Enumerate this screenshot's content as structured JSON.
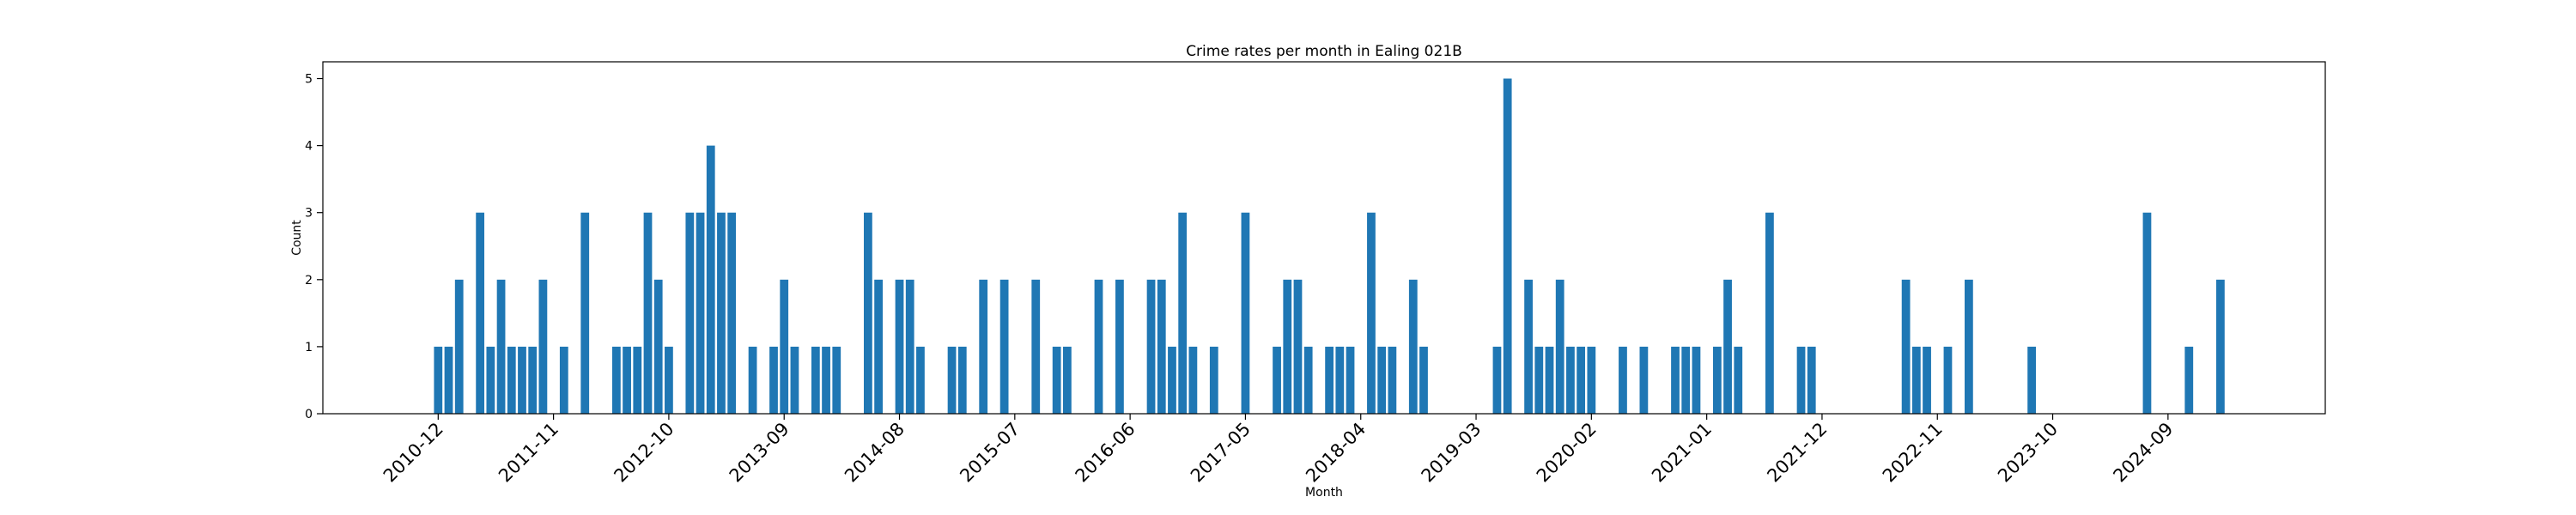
{
  "chart_data": {
    "type": "bar",
    "title": "Crime rates per month in Ealing 021B",
    "xlabel": "Month",
    "ylabel": "Count",
    "ylim": [
      0,
      5.25
    ],
    "yticks": [
      0,
      1,
      2,
      3,
      4,
      5
    ],
    "xticks": [
      "2010-12",
      "2011-11",
      "2012-10",
      "2013-09",
      "2014-08",
      "2015-07",
      "2016-06",
      "2017-05",
      "2018-04",
      "2019-03",
      "2020-02",
      "2021-01",
      "2021-12",
      "2022-11",
      "2023-10",
      "2024-09"
    ],
    "xlim": [
      "2010-01",
      "2025-12"
    ],
    "grid": false,
    "color": "#1f77b4",
    "x": [
      "2010-12",
      "2011-01",
      "2011-02",
      "2011-04",
      "2011-05",
      "2011-06",
      "2011-07",
      "2011-08",
      "2011-09",
      "2011-10",
      "2011-12",
      "2012-02",
      "2012-05",
      "2012-06",
      "2012-07",
      "2012-08",
      "2012-09",
      "2012-10",
      "2012-12",
      "2013-01",
      "2013-02",
      "2013-03",
      "2013-04",
      "2013-06",
      "2013-08",
      "2013-09",
      "2013-10",
      "2013-12",
      "2014-01",
      "2014-02",
      "2014-05",
      "2014-06",
      "2014-08",
      "2014-09",
      "2014-10",
      "2015-01",
      "2015-02",
      "2015-04",
      "2015-06",
      "2015-09",
      "2015-11",
      "2015-12",
      "2016-03",
      "2016-05",
      "2016-08",
      "2016-09",
      "2016-10",
      "2016-11",
      "2016-12",
      "2017-02",
      "2017-05",
      "2017-08",
      "2017-09",
      "2017-10",
      "2017-11",
      "2018-01",
      "2018-02",
      "2018-03",
      "2018-05",
      "2018-06",
      "2018-07",
      "2018-09",
      "2018-10",
      "2019-05",
      "2019-06",
      "2019-08",
      "2019-09",
      "2019-10",
      "2019-11",
      "2019-12",
      "2020-01",
      "2020-02",
      "2020-05",
      "2020-07",
      "2020-10",
      "2020-11",
      "2020-12",
      "2021-02",
      "2021-03",
      "2021-04",
      "2021-07",
      "2021-10",
      "2021-11",
      "2022-08",
      "2022-09",
      "2022-10",
      "2022-12",
      "2023-02",
      "2023-08",
      "2024-07",
      "2024-11",
      "2025-02"
    ],
    "values": [
      1,
      1,
      2,
      3,
      1,
      2,
      1,
      1,
      1,
      2,
      1,
      3,
      1,
      1,
      1,
      3,
      2,
      1,
      3,
      3,
      4,
      3,
      3,
      1,
      1,
      2,
      1,
      1,
      1,
      1,
      3,
      2,
      2,
      2,
      1,
      1,
      1,
      2,
      2,
      2,
      1,
      1,
      2,
      2,
      2,
      2,
      1,
      3,
      1,
      1,
      3,
      1,
      2,
      2,
      1,
      1,
      1,
      1,
      3,
      1,
      1,
      2,
      1,
      1,
      5,
      2,
      1,
      1,
      2,
      1,
      1,
      1,
      1,
      1,
      1,
      1,
      1,
      1,
      2,
      1,
      3,
      1,
      1,
      2,
      1,
      1,
      1,
      2,
      1,
      3,
      1,
      2
    ]
  }
}
